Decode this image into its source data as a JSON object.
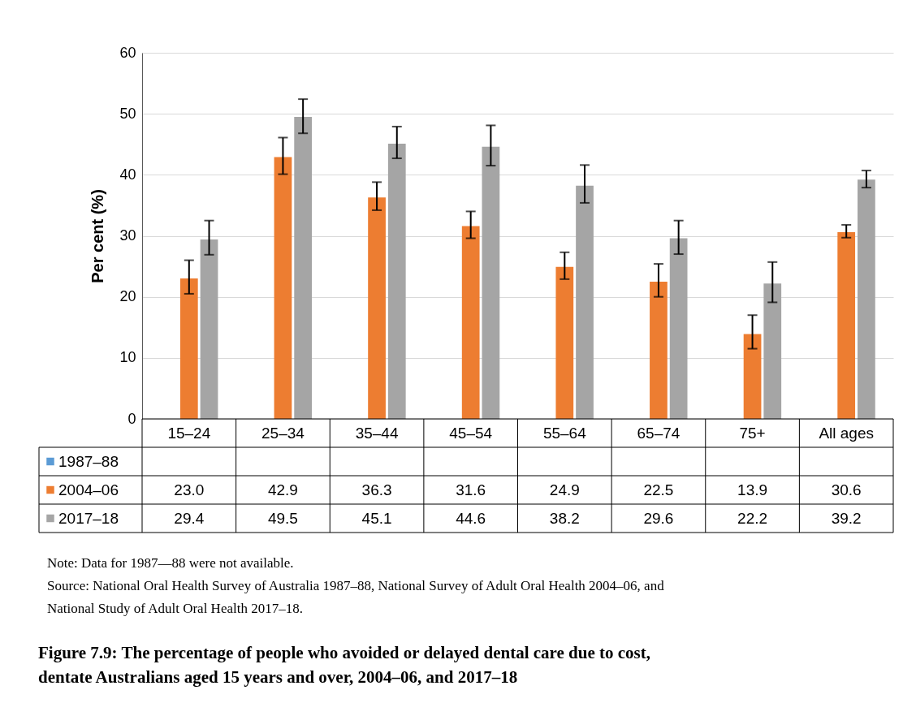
{
  "chart_data": {
    "type": "bar",
    "title": "Figure 7.9: The percentage of people who avoided or delayed dental care due to cost, dentate Australians aged 15 years and over, 2004–06, and 2017–18",
    "ylabel": "Per cent (%)",
    "categories": [
      "15–24",
      "25–34",
      "35–44",
      "45–54",
      "55–64",
      "65–74",
      "75+",
      "All ages"
    ],
    "series": [
      {
        "name": "1987–88",
        "color": "#5b9bd5",
        "values": [
          null,
          null,
          null,
          null,
          null,
          null,
          null,
          null
        ],
        "value_labels": [
          null,
          null,
          null,
          null,
          null,
          null,
          null,
          null
        ]
      },
      {
        "name": "2004–06",
        "color": "#ed7d31",
        "values": [
          23.0,
          42.9,
          36.3,
          31.6,
          24.9,
          22.5,
          13.9,
          30.6
        ],
        "value_labels": [
          "23.0",
          "42.9",
          "36.3",
          "31.6",
          "24.9",
          "22.5",
          "13.9",
          "30.6"
        ],
        "errors": [
          [
            20.5,
            26.0
          ],
          [
            40.1,
            46.1
          ],
          [
            34.2,
            38.8
          ],
          [
            29.6,
            34.0
          ],
          [
            22.9,
            27.3
          ],
          [
            20.0,
            25.4
          ],
          [
            11.5,
            17.0
          ],
          [
            29.7,
            31.8
          ]
        ]
      },
      {
        "name": "2017–18",
        "color": "#a5a5a5",
        "values": [
          29.4,
          49.5,
          45.1,
          44.6,
          38.2,
          29.6,
          22.2,
          39.2
        ],
        "value_labels": [
          "29.4",
          "49.5",
          "45.1",
          "44.6",
          "38.2",
          "29.6",
          "22.2",
          "39.2"
        ],
        "errors": [
          [
            26.9,
            32.5
          ],
          [
            46.8,
            52.4
          ],
          [
            42.7,
            47.9
          ],
          [
            41.5,
            48.1
          ],
          [
            35.4,
            41.6
          ],
          [
            27.0,
            32.5
          ],
          [
            19.1,
            25.7
          ],
          [
            37.9,
            40.7
          ]
        ]
      }
    ],
    "ylim": [
      0,
      60
    ],
    "yticks": [
      0,
      10,
      20,
      30,
      40,
      50,
      60
    ],
    "grid": "y",
    "legend": "bottom",
    "annotations": [
      "Note: Data for 1987—88 were not available.",
      "Source: National Oral Health Survey of Australia 1987–88, National Survey of Adult Oral Health 2004–06, and National Study of Adult Oral Health 2017–18."
    ]
  }
}
